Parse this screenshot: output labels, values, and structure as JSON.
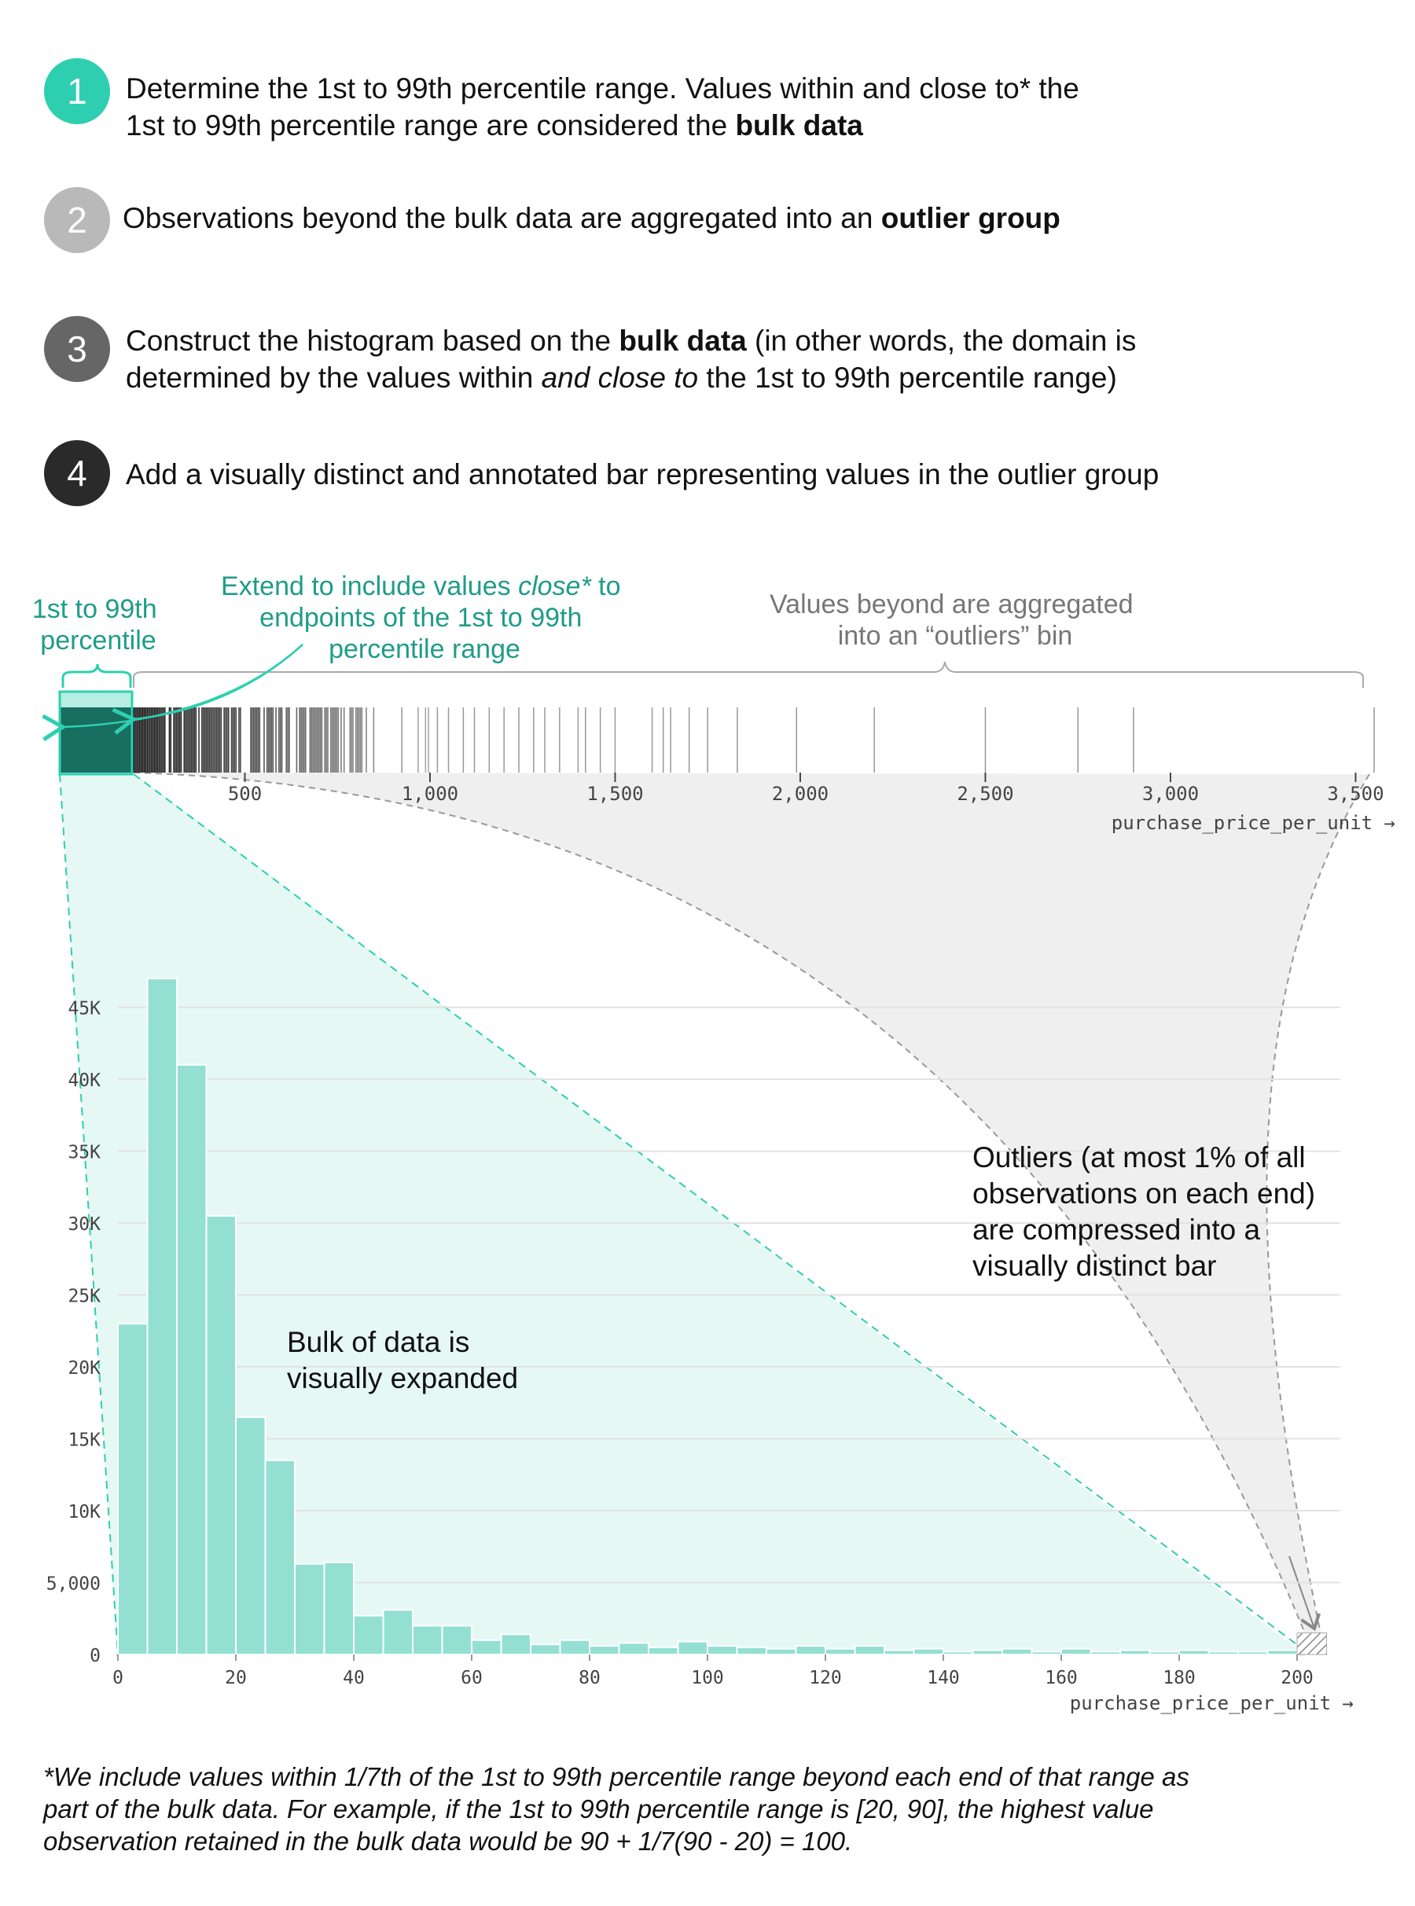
{
  "steps": [
    {
      "number": "1",
      "color": "#2ecfb0",
      "line1_pre": "Determine the 1st to 99th percentile range. Values within and close to* the",
      "line2_pre": "1st to 99th percentile range are considered the ",
      "line2_bold": "bulk data"
    },
    {
      "number": "2",
      "color": "#b9b9b9",
      "line1_pre": "Observations beyond the bulk data are aggregated into an ",
      "line1_bold": "outlier group"
    },
    {
      "number": "3",
      "color": "#666666",
      "line1_pre": "Construct the histogram based on the ",
      "line1_bold": "bulk data",
      "line1_post": " (in other words, the domain is",
      "line2_pre": "determined by the values within ",
      "line2_ital": "and close to",
      "line2_post": " the 1st to 99th percentile range)"
    },
    {
      "number": "4",
      "color": "#2a2a2a",
      "line1_pre": "Add a visually distinct and annotated bar representing values in the outlier group"
    }
  ],
  "annotations": {
    "pct_line1": "1st to 99th",
    "pct_line2": "percentile",
    "extend_line1_pre": "Extend to include values ",
    "extend_line1_ital": "close*",
    "extend_line1_post": " to",
    "extend_line2": "endpoints of the 1st to 99th",
    "extend_line3": "percentile range",
    "beyond_line1": "Values beyond are aggregated",
    "beyond_line2": "into an “outliers” bin",
    "outliers_lines": [
      "Outliers (at most 1% of all",
      "observations on each end)",
      "are compressed into a",
      "visually distinct bar"
    ],
    "bulk_lines": [
      "Bulk of data is",
      "visually expanded"
    ]
  },
  "colors": {
    "teal": "#2ecfb0",
    "teal_dark": "#1f9c87",
    "bar_fill": "#93e0d3",
    "bar_stroke": "#ffffff",
    "region_fill": "#e6f8f4",
    "grey_region": "#ececec",
    "grid": "#e2e2e2",
    "axis_text": "#444444"
  },
  "chart_data": [
    {
      "type": "strip",
      "description": "rug of purchase_price_per_unit observations",
      "xlabel": "purchase_price_per_unit →",
      "xlim": [
        0,
        3550
      ],
      "ticks": [
        500,
        1000,
        1500,
        2000,
        2500,
        3000,
        3500
      ],
      "tick_labels": [
        "500",
        "1,000",
        "1,500",
        "2,000",
        "2,500",
        "3,000",
        "3,500"
      ],
      "bulk_range": [
        0,
        200
      ],
      "dense_range": [
        200,
        1000
      ],
      "sparse_values": [
        1020,
        1050,
        1090,
        1120,
        1160,
        1200,
        1240,
        1280,
        1310,
        1350,
        1400,
        1420,
        1460,
        1500,
        1600,
        1630,
        1650,
        1700,
        1750,
        1830,
        1990,
        2200,
        2500,
        2750,
        2900,
        3550
      ]
    },
    {
      "type": "bar",
      "title": "",
      "xlabel": "purchase_price_per_unit →",
      "ylabel": "",
      "bin_width": 5,
      "bin_start": 0,
      "xlim": [
        0,
        200
      ],
      "ylim": [
        0,
        47000
      ],
      "x_ticks": [
        0,
        20,
        40,
        60,
        80,
        100,
        120,
        140,
        160,
        180,
        200
      ],
      "y_ticks": [
        0,
        5000,
        10000,
        15000,
        20000,
        25000,
        30000,
        35000,
        40000,
        45000
      ],
      "y_tick_labels": [
        "0",
        "5,000",
        "10K",
        "15K",
        "20K",
        "25K",
        "30K",
        "35K",
        "40K",
        "45K"
      ],
      "values": [
        23000,
        47000,
        41000,
        30500,
        16500,
        13500,
        6300,
        6400,
        2700,
        3100,
        2000,
        2000,
        1000,
        1400,
        700,
        1000,
        600,
        800,
        500,
        900,
        600,
        500,
        400,
        600,
        400,
        600,
        300,
        400,
        200,
        300,
        400,
        200,
        400,
        200,
        300,
        200,
        300,
        200,
        200,
        300
      ],
      "outlier_bin": {
        "x": [
          200,
          205
        ],
        "value": 1500,
        "pattern": "hatched"
      }
    }
  ],
  "footnote_lines": [
    "*We include values within 1/7th of the 1st to 99th percentile range beyond each end of that range as",
    "part of the bulk data. For example, if the 1st to 99th percentile range is [20, 90], the highest value",
    "observation retained in the bulk data would be 90 + 1/7(90 - 20) = 100."
  ]
}
